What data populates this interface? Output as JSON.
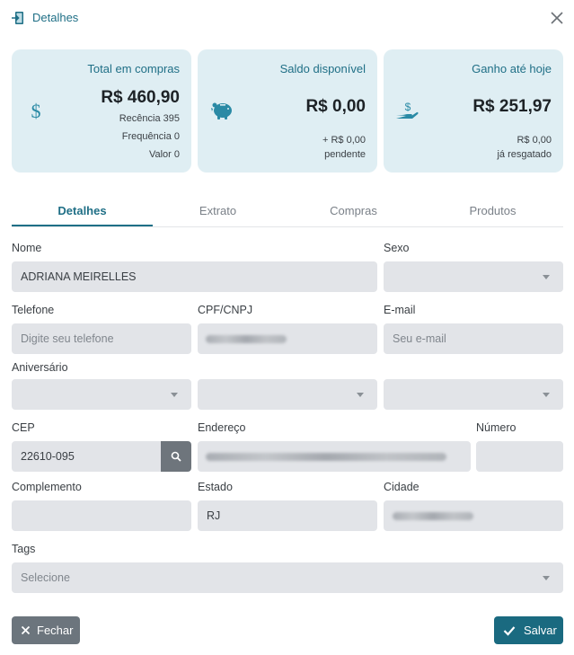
{
  "header": {
    "title": "Detalhes"
  },
  "cards": [
    {
      "title": "Total em compras",
      "value": "R$ 460,90",
      "lines": [
        "Recência 395",
        "Frequência 0",
        "Valor 0"
      ],
      "icon": "dollar-icon"
    },
    {
      "title": "Saldo disponível",
      "value": "R$ 0,00",
      "lines": [
        "+ R$ 0,00",
        "pendente"
      ],
      "icon": "piggy-bank-icon"
    },
    {
      "title": "Ganho até hoje",
      "value": "R$ 251,97",
      "lines": [
        "R$ 0,00",
        "já resgatado"
      ],
      "icon": "hand-money-icon"
    }
  ],
  "tabs": [
    "Detalhes",
    "Extrato",
    "Compras",
    "Produtos"
  ],
  "active_tab": "Detalhes",
  "form": {
    "nome": {
      "label": "Nome",
      "value": "ADRIANA MEIRELLES"
    },
    "sexo": {
      "label": "Sexo",
      "value": ""
    },
    "telefone": {
      "label": "Telefone",
      "placeholder": "Digite seu telefone"
    },
    "cpf": {
      "label": "CPF/CNPJ",
      "value": ""
    },
    "email": {
      "label": "E-mail",
      "placeholder": "Seu e-mail"
    },
    "aniversario": {
      "label": "Aniversário"
    },
    "cep": {
      "label": "CEP",
      "value": "22610-095"
    },
    "endereco": {
      "label": "Endereço",
      "value": ""
    },
    "numero": {
      "label": "Número",
      "value": ""
    },
    "complemento": {
      "label": "Complemento",
      "value": ""
    },
    "estado": {
      "label": "Estado",
      "value": "RJ"
    },
    "cidade": {
      "label": "Cidade",
      "value": ""
    },
    "tags": {
      "label": "Tags",
      "placeholder": "Selecione"
    }
  },
  "buttons": {
    "close": "Fechar",
    "save": "Salvar"
  },
  "colors": {
    "accent": "#1f6f86",
    "card_bg": "#dfeef3",
    "field_bg": "#e2e4e8",
    "close_btn": "#6c757d",
    "save_btn": "#1a6a80"
  }
}
